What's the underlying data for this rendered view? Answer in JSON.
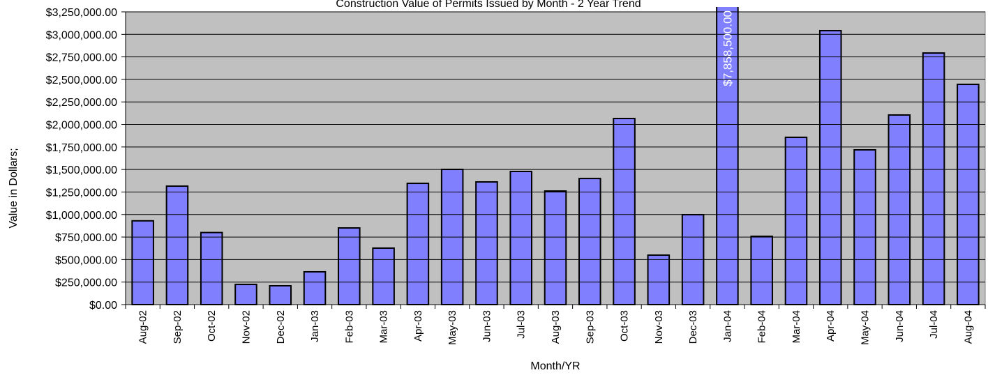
{
  "chart_data": {
    "type": "bar",
    "title": "Construction Value of Permits Issued by Month - 2 Year Trend",
    "x_label": "Month/YR",
    "y_label": "Value in Dollars;",
    "categories": [
      "Aug-02",
      "Sep-02",
      "Oct-02",
      "Nov-02",
      "Dec-02",
      "Jan-03",
      "Feb-03",
      "Mar-03",
      "Apr-03",
      "May-03",
      "Jun-03",
      "Jul-03",
      "Aug-03",
      "Sep-03",
      "Oct-03",
      "Nov-03",
      "Dec-03",
      "Jan-04",
      "Feb-04",
      "Mar-04",
      "Apr-04",
      "May-04",
      "Jun-04",
      "Jul-04",
      "Aug-04"
    ],
    "values": [
      930000,
      1315000,
      800000,
      224000,
      209000,
      364000,
      851000,
      627000,
      1346000,
      1501000,
      1362000,
      1478000,
      1261000,
      1400000,
      2066000,
      549000,
      998000,
      7858500,
      758000,
      1857000,
      3041000,
      1718000,
      2105000,
      2793000,
      2445000
    ],
    "value_labels": [
      null,
      null,
      null,
      null,
      null,
      null,
      null,
      null,
      null,
      null,
      null,
      null,
      null,
      null,
      null,
      null,
      null,
      "$7,858,500.00",
      null,
      null,
      null,
      null,
      null,
      null,
      null
    ],
    "color": "#8080ff",
    "plot_background": "#c0c0c0",
    "ylim": [
      0,
      3250000
    ],
    "yticks": [
      {
        "value": 0,
        "label": "$0.00"
      },
      {
        "value": 250000,
        "label": "$250,000.00"
      },
      {
        "value": 500000,
        "label": "$500,000.00"
      },
      {
        "value": 750000,
        "label": "$750,000.00"
      },
      {
        "value": 1000000,
        "label": "$1,000,000.00"
      },
      {
        "value": 1250000,
        "label": "$1,250,000.00"
      },
      {
        "value": 1500000,
        "label": "$1,500,000.00"
      },
      {
        "value": 1750000,
        "label": "$1,750,000.00"
      },
      {
        "value": 2000000,
        "label": "$2,000,000.00"
      },
      {
        "value": 2250000,
        "label": "$2,250,000.00"
      },
      {
        "value": 2500000,
        "label": "$2,500,000.00"
      },
      {
        "value": 2750000,
        "label": "$2,750,000.00"
      },
      {
        "value": 3000000,
        "label": "$3,000,000.00"
      },
      {
        "value": 3250000,
        "label": "$3,250,000.00"
      }
    ],
    "grid": true
  }
}
